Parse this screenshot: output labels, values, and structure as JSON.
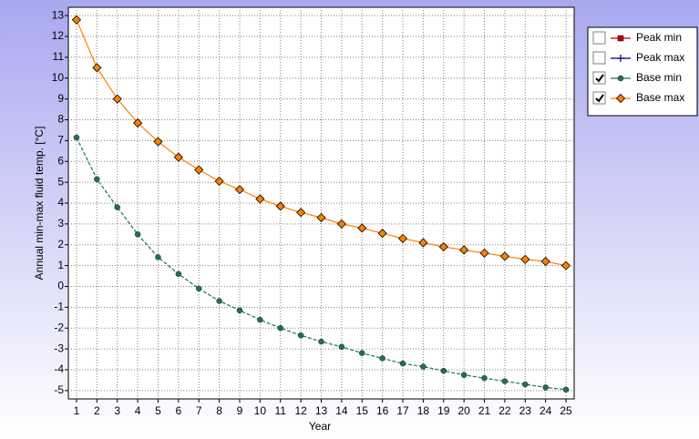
{
  "chart_data": {
    "type": "line",
    "xlabel": "Year",
    "ylabel": "Annual min-max fluid temp. [°C]",
    "x": [
      1,
      2,
      3,
      4,
      5,
      6,
      7,
      8,
      9,
      10,
      11,
      12,
      13,
      14,
      15,
      16,
      17,
      18,
      19,
      20,
      21,
      22,
      23,
      24,
      25
    ],
    "xlim": [
      0.6,
      25.4
    ],
    "xticks": [
      1,
      2,
      3,
      4,
      5,
      6,
      7,
      8,
      9,
      10,
      11,
      12,
      13,
      14,
      15,
      16,
      17,
      18,
      19,
      20,
      21,
      22,
      23,
      24,
      25
    ],
    "ylim": [
      -5.4,
      13.4
    ],
    "yticks": [
      -5,
      -4,
      -3,
      -2,
      -1,
      0,
      1,
      2,
      3,
      4,
      5,
      6,
      7,
      8,
      9,
      10,
      11,
      12,
      13
    ],
    "grid": true,
    "legend": "top-right",
    "series": [
      {
        "name": "Peak min",
        "color": "#c00000",
        "marker": "square",
        "checked": false,
        "values": [
          null,
          null,
          null,
          null,
          null,
          null,
          null,
          null,
          null,
          null,
          null,
          null,
          null,
          null,
          null,
          null,
          null,
          null,
          null,
          null,
          null,
          null,
          null,
          null,
          null
        ]
      },
      {
        "name": "Peak max",
        "color": "#000080",
        "marker": "plus",
        "checked": false,
        "values": [
          null,
          null,
          null,
          null,
          null,
          null,
          null,
          null,
          null,
          null,
          null,
          null,
          null,
          null,
          null,
          null,
          null,
          null,
          null,
          null,
          null,
          null,
          null,
          null,
          null
        ]
      },
      {
        "name": "Base min",
        "color": "#1f6f5f",
        "marker": "circle",
        "checked": true,
        "values": [
          7.15,
          5.15,
          3.8,
          2.5,
          1.4,
          0.6,
          -0.1,
          -0.7,
          -1.15,
          -1.6,
          -2.0,
          -2.35,
          -2.65,
          -2.9,
          -3.2,
          -3.45,
          -3.7,
          -3.85,
          -4.05,
          -4.25,
          -4.4,
          -4.55,
          -4.7,
          -4.85,
          -4.95
        ]
      },
      {
        "name": "Base max",
        "color": "#ff8000",
        "marker": "diamond",
        "checked": true,
        "values": [
          12.8,
          10.5,
          9.0,
          7.85,
          6.95,
          6.2,
          5.6,
          5.05,
          4.65,
          4.2,
          3.85,
          3.55,
          3.3,
          3.0,
          2.8,
          2.55,
          2.3,
          2.1,
          1.9,
          1.75,
          1.6,
          1.45,
          1.3,
          1.2,
          1.0
        ]
      }
    ]
  }
}
